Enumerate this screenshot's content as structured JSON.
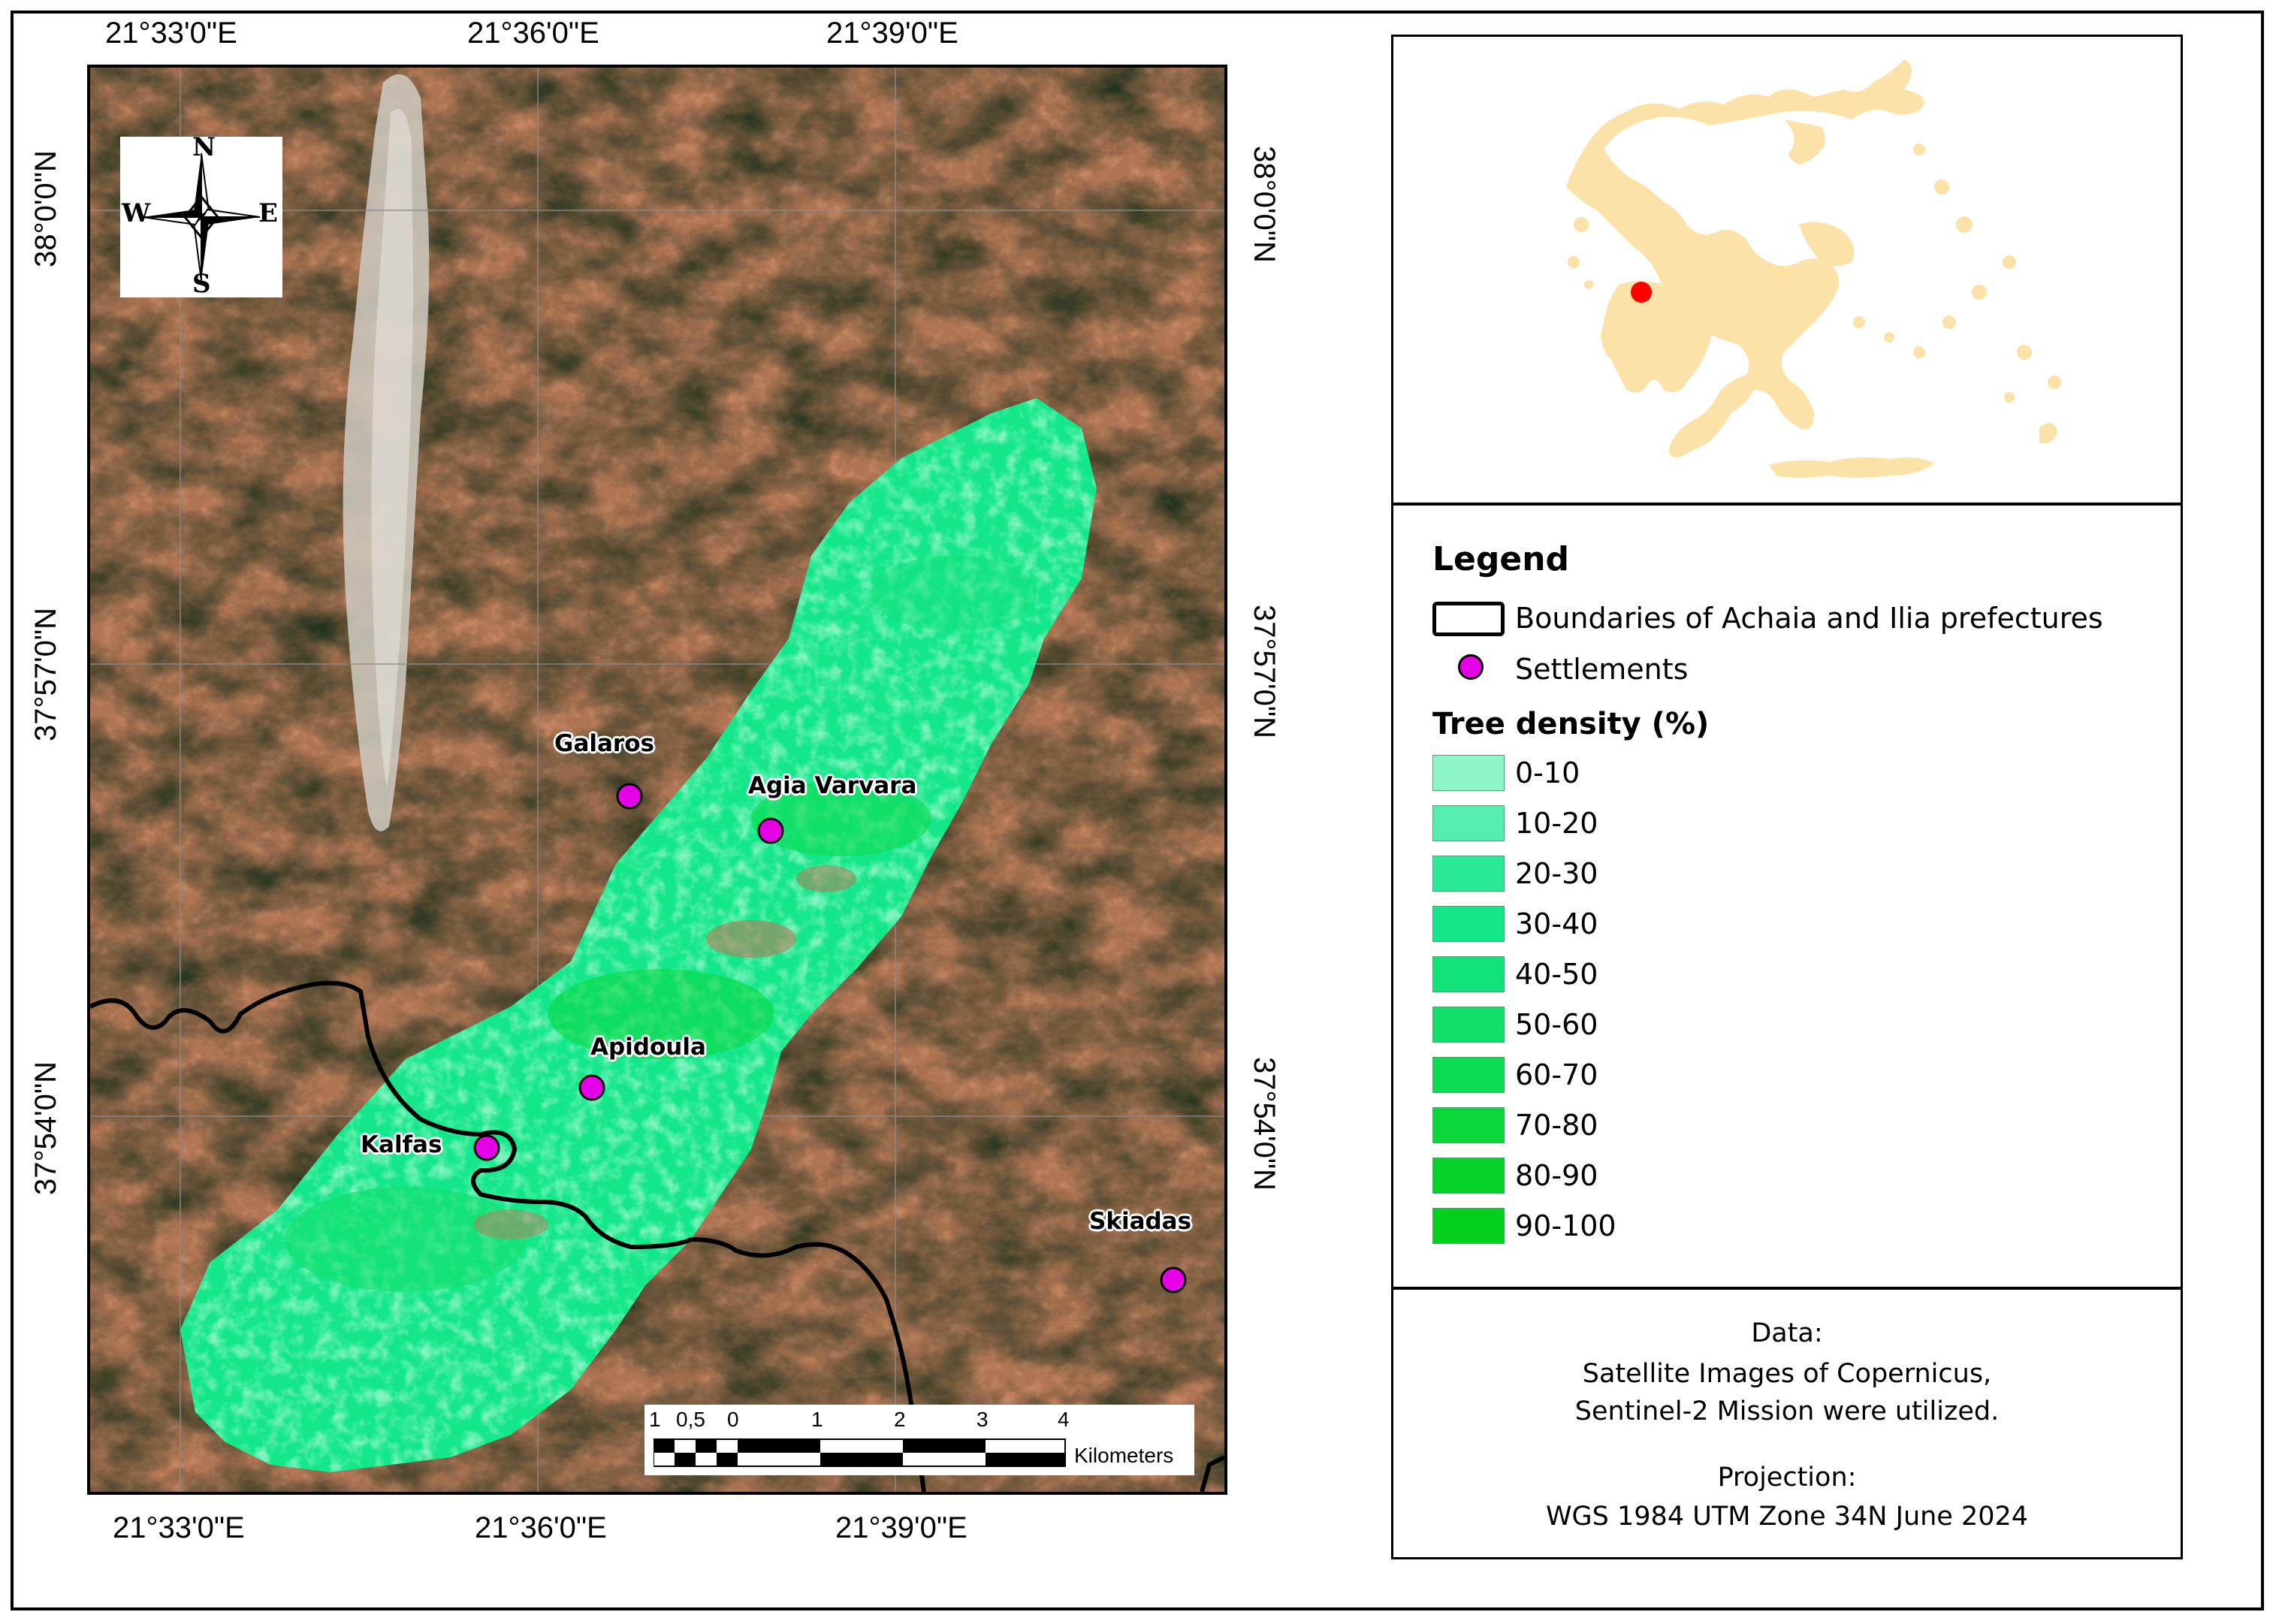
{
  "coords": {
    "top_labels": [
      "21°33'0\"E",
      "21°36'0\"E",
      "21°39'0\"E"
    ],
    "bottom_labels": [
      "21°33'0\"E",
      "21°36'0\"E",
      "21°39'0\"E"
    ],
    "left_labels": [
      "38°0'0\"N",
      "37°57'0\"N",
      "37°54'0\"N"
    ],
    "right_labels": [
      "38°0'0\"N",
      "37°57'0\"N",
      "37°54'0\"N"
    ]
  },
  "compass": {
    "north": "N",
    "south": "S",
    "east": "E",
    "west": "W"
  },
  "settlements": {
    "galaros": "Galaros",
    "agia_varvara": "Agia Varvara",
    "apidoula": "Apidoula",
    "kalfas": "Kalfas",
    "skiadas": "Skiadas"
  },
  "scalebar": {
    "ticks": [
      "1",
      "0,5",
      "0",
      "1",
      "2",
      "3",
      "4"
    ],
    "unit": "Kilometers"
  },
  "legend": {
    "title": "Legend",
    "boundary_label": "Boundaries of Achaia and Ilia prefectures",
    "settlements_label": "Settlements",
    "density_title": "Tree density (%)",
    "classes": [
      {
        "label": "0-10",
        "color": "#8ef5c6"
      },
      {
        "label": "10-20",
        "color": "#55eeae"
      },
      {
        "label": "20-30",
        "color": "#2bea97"
      },
      {
        "label": "30-40",
        "color": "#14e789"
      },
      {
        "label": "40-50",
        "color": "#12e27a"
      },
      {
        "label": "50-60",
        "color": "#10df6a"
      },
      {
        "label": "60-70",
        "color": "#0ddb52"
      },
      {
        "label": "70-80",
        "color": "#0ad73c"
      },
      {
        "label": "80-90",
        "color": "#07d22c"
      },
      {
        "label": "90-100",
        "color": "#05cf1e"
      }
    ]
  },
  "data_note": {
    "line1": "Data:",
    "line2": "Satellite Images of Copernicus,",
    "line3": "Sentinel-2 Mission were utilized.",
    "line4": "Projection:",
    "line5": "WGS 1984 UTM Zone 34N June 2024"
  },
  "colors": {
    "settlement_marker": "#e600e6",
    "study_area_marker": "#ff0000",
    "country_fill": "#fbe2a8",
    "boundary": "#000000"
  }
}
